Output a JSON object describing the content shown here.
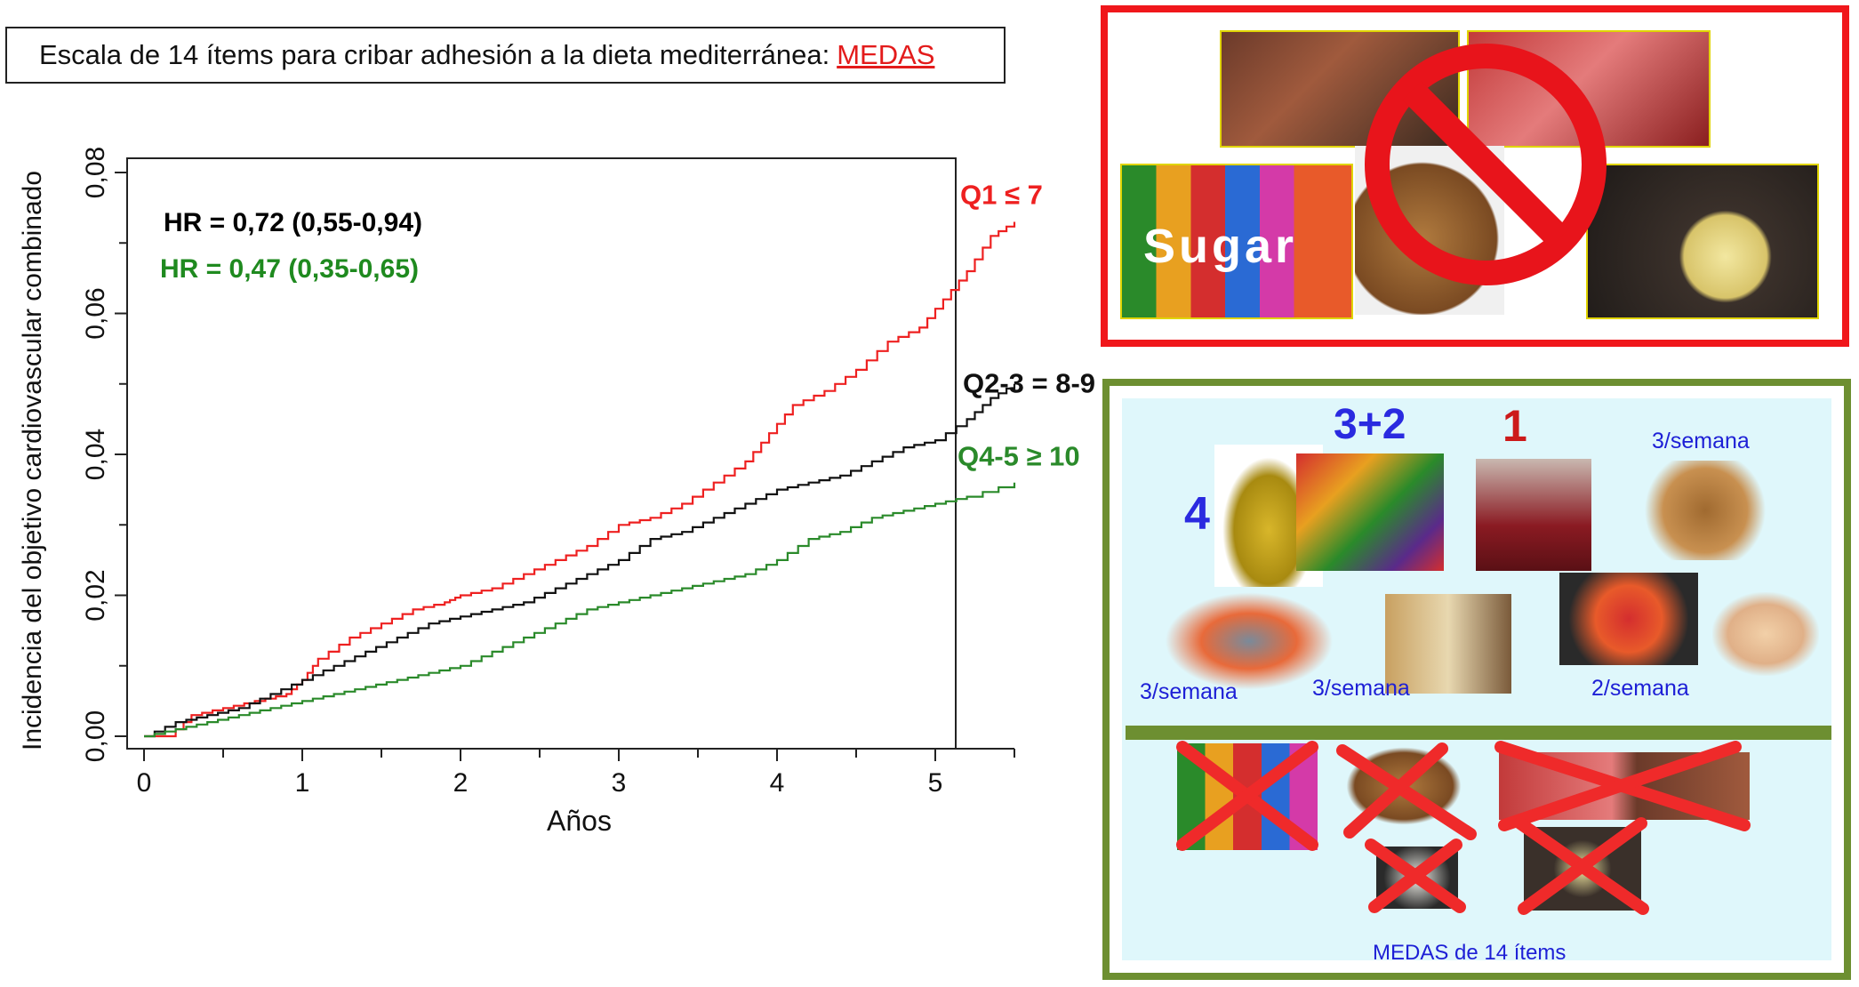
{
  "header": {
    "text": "Escala de 14 ítems para cribar adhesión a la dieta mediterránea:",
    "link": "MEDAS"
  },
  "chart_data": {
    "type": "line",
    "xlabel": "Años",
    "ylabel": "Incidencia del objetivo cardiovascular combinado",
    "xlim": [
      0,
      5.5
    ],
    "ylim": [
      0,
      0.08
    ],
    "xticks": [
      "0",
      "1",
      "2",
      "3",
      "4",
      "5"
    ],
    "yticks": [
      "0,00",
      "0,02",
      "0,04",
      "0,06",
      "0,08"
    ],
    "grid": false,
    "annotations": [
      {
        "text": "HR = 0,72 (0,55-0,94)",
        "color": "#000000"
      },
      {
        "text": "HR = 0,47 (0,35-0,65)",
        "color": "#1f8a1f"
      }
    ],
    "series": [
      {
        "name": "Q1 ≤ 7",
        "color": "#ee2020",
        "x": [
          0,
          0.15,
          0.3,
          0.5,
          0.7,
          0.9,
          1.0,
          1.1,
          1.3,
          1.5,
          1.7,
          1.9,
          2.0,
          2.2,
          2.4,
          2.6,
          2.8,
          3.0,
          3.2,
          3.4,
          3.6,
          3.8,
          3.95,
          4.1,
          4.3,
          4.5,
          4.7,
          4.9,
          5.05,
          5.2,
          5.35,
          5.5
        ],
        "y": [
          0,
          0.0,
          0.003,
          0.004,
          0.005,
          0.006,
          0.008,
          0.011,
          0.014,
          0.016,
          0.018,
          0.019,
          0.02,
          0.021,
          0.023,
          0.025,
          0.027,
          0.03,
          0.031,
          0.033,
          0.036,
          0.039,
          0.043,
          0.047,
          0.049,
          0.052,
          0.056,
          0.058,
          0.062,
          0.066,
          0.071,
          0.073
        ]
      },
      {
        "name": "Q2-3 = 8-9",
        "color": "#111111",
        "x": [
          0,
          0.2,
          0.4,
          0.6,
          0.8,
          1.0,
          1.2,
          1.4,
          1.6,
          1.8,
          2.0,
          2.2,
          2.4,
          2.6,
          2.8,
          3.0,
          3.2,
          3.4,
          3.6,
          3.8,
          4.0,
          4.2,
          4.4,
          4.6,
          4.8,
          5.0,
          5.2,
          5.35,
          5.5
        ],
        "y": [
          0,
          0.002,
          0.003,
          0.004,
          0.006,
          0.008,
          0.01,
          0.012,
          0.014,
          0.016,
          0.017,
          0.018,
          0.019,
          0.021,
          0.023,
          0.025,
          0.028,
          0.029,
          0.031,
          0.033,
          0.035,
          0.036,
          0.037,
          0.039,
          0.041,
          0.042,
          0.045,
          0.048,
          0.05
        ]
      },
      {
        "name": "Q4-5 ≥ 10",
        "color": "#2a8a2a",
        "x": [
          0,
          0.2,
          0.4,
          0.6,
          0.8,
          1.0,
          1.2,
          1.4,
          1.6,
          1.8,
          2.0,
          2.2,
          2.4,
          2.6,
          2.8,
          3.0,
          3.2,
          3.4,
          3.6,
          3.8,
          4.0,
          4.2,
          4.4,
          4.6,
          4.8,
          5.0,
          5.2,
          5.5
        ],
        "y": [
          0,
          0.001,
          0.002,
          0.003,
          0.004,
          0.005,
          0.006,
          0.007,
          0.008,
          0.009,
          0.01,
          0.012,
          0.014,
          0.016,
          0.018,
          0.019,
          0.02,
          0.021,
          0.022,
          0.023,
          0.025,
          0.028,
          0.029,
          0.031,
          0.032,
          0.033,
          0.034,
          0.036
        ]
      }
    ]
  },
  "food_panel": {
    "forbidden_photo_labels": [
      "Sugar"
    ],
    "good_labels": {
      "olive_oil_count": "4",
      "fruit_veg_count": "3+2",
      "wine_count": "1",
      "nuts": "3/semana",
      "fish": "3/semana",
      "legumes": "3/semana",
      "sofrito": "2/semana",
      "footer": "MEDAS de 14 ítems"
    },
    "colors": {
      "forbidden_border": "#f0171b",
      "good_border": "#6d8f31",
      "good_bg": "#dff7fb"
    }
  }
}
